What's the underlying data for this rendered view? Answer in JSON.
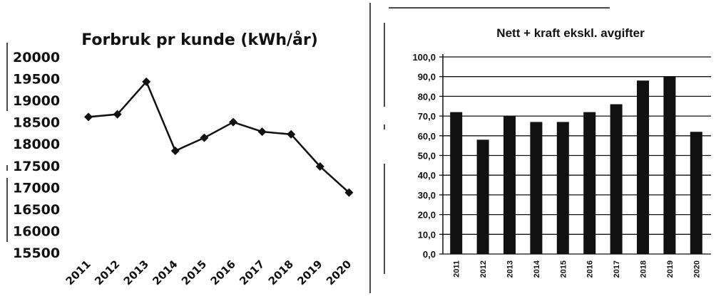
{
  "chart_data": [
    {
      "type": "line",
      "title": "Forbruk pr kunde (kWh/år)",
      "categories": [
        "2011",
        "2012",
        "2013",
        "2014",
        "2015",
        "2016",
        "2017",
        "2018",
        "2019",
        "2020"
      ],
      "values": [
        18620,
        18680,
        19430,
        17840,
        18140,
        18500,
        18280,
        18220,
        17480,
        16880
      ],
      "yticks": [
        "20000",
        "19500",
        "19000",
        "18500",
        "18000",
        "17500",
        "17000",
        "16500",
        "16000",
        "15500"
      ],
      "ylim": [
        15500,
        20000
      ],
      "grid": false,
      "colors": {
        "line": "#111111",
        "marker": "#111111"
      }
    },
    {
      "type": "bar",
      "title": "Nett + kraft ekskl. avgifter",
      "categories": [
        "2011",
        "2012",
        "2013",
        "2014",
        "2015",
        "2016",
        "2017",
        "2018",
        "2019",
        "2020"
      ],
      "values": [
        72,
        58,
        70,
        67,
        67,
        72,
        76,
        88,
        90,
        62
      ],
      "yticks": [
        "100,0",
        "90,0",
        "80,0",
        "70,0",
        "60,0",
        "50,0",
        "40,0",
        "30,0",
        "20,0",
        "10,0",
        "0,0"
      ],
      "ylim": [
        0,
        100
      ],
      "grid": true,
      "colors": {
        "bar": "#111111",
        "grid": "#111111"
      }
    }
  ]
}
